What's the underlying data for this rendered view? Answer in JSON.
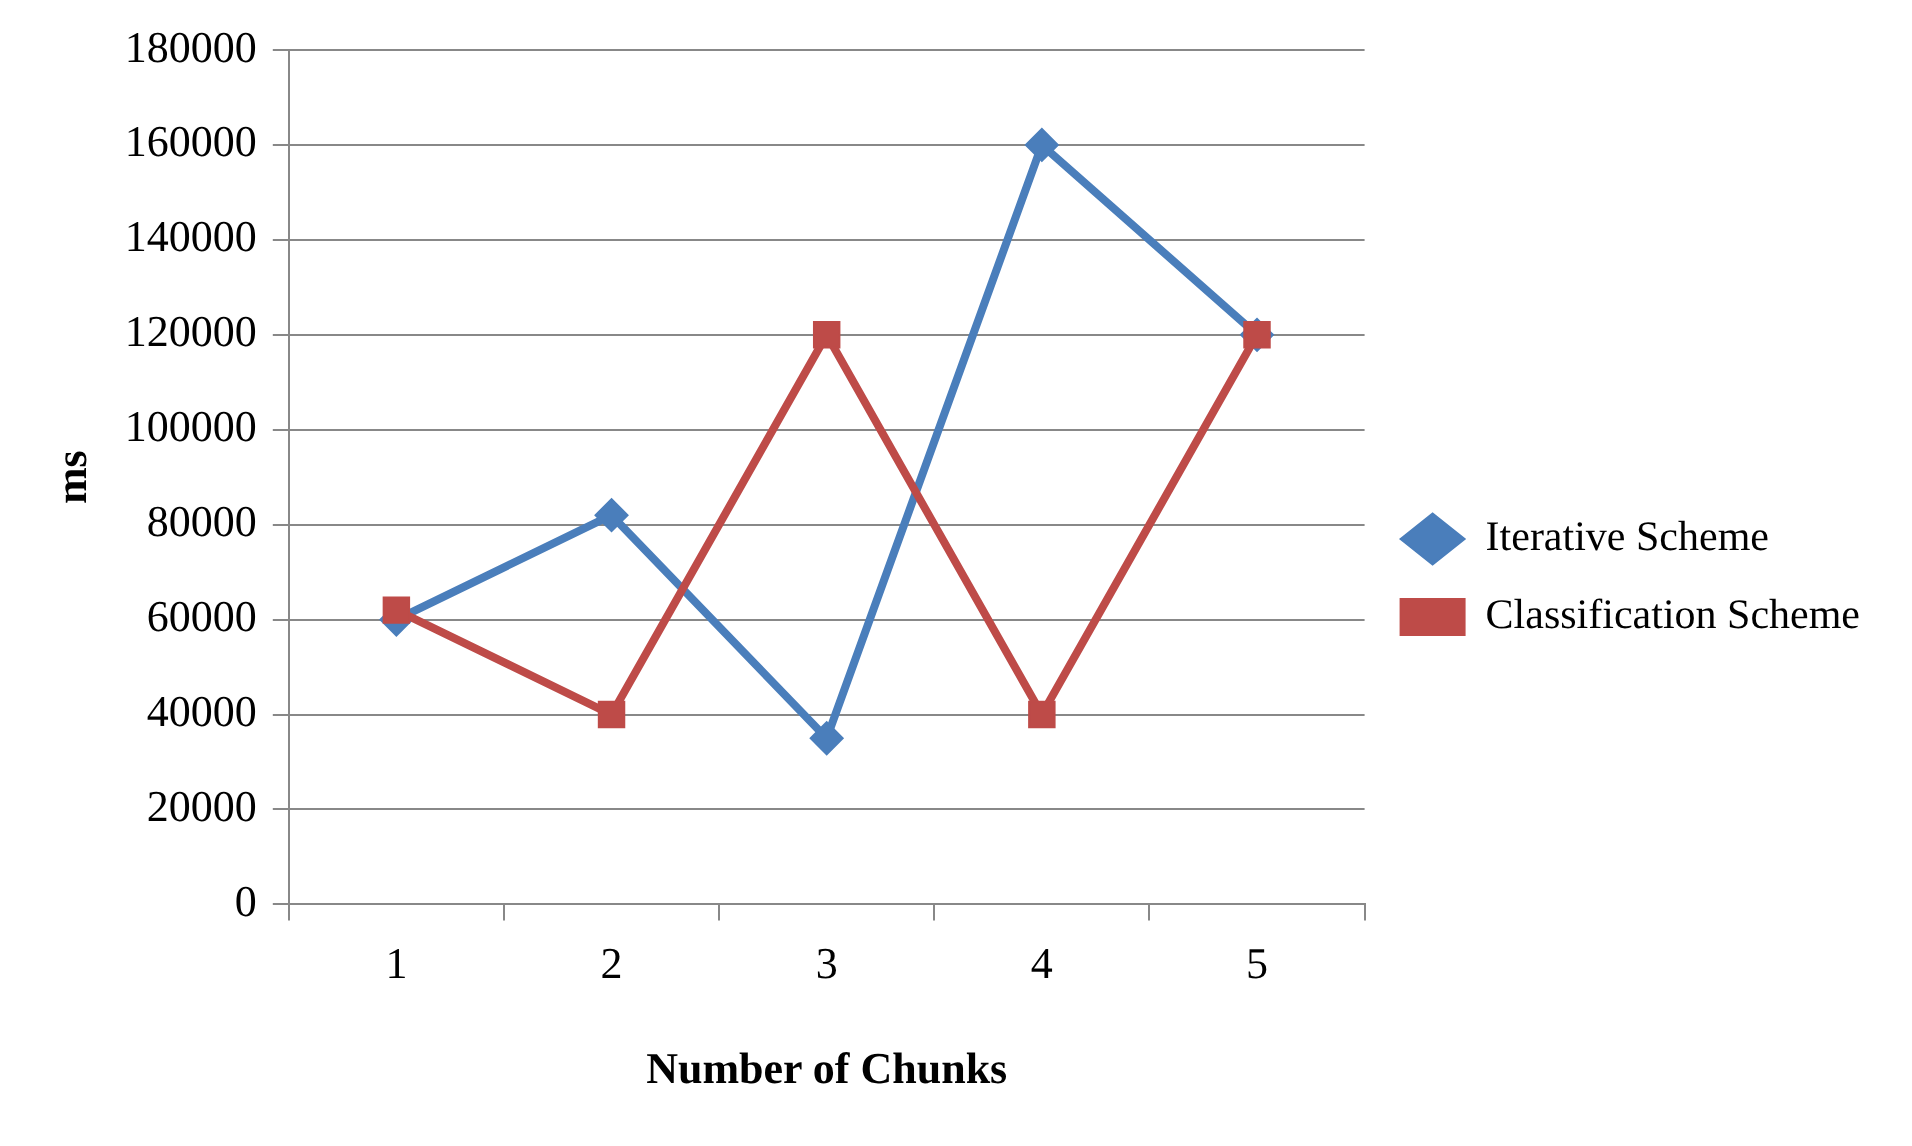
{
  "chart_data": {
    "type": "line",
    "xlabel": "Number of Chunks",
    "ylabel": "ms",
    "categories": [
      "1",
      "2",
      "3",
      "4",
      "5"
    ],
    "series": [
      {
        "name": "Iterative Scheme",
        "color": "#4a7ebb",
        "values": [
          60000,
          82000,
          35000,
          160000,
          120000
        ],
        "marker": "diamond"
      },
      {
        "name": "Classification Scheme",
        "color": "#be4b48",
        "values": [
          62000,
          40000,
          120000,
          40000,
          120000
        ],
        "marker": "square"
      }
    ],
    "ylim": [
      0,
      180000
    ],
    "yticks": [
      0,
      20000,
      40000,
      60000,
      80000,
      100000,
      120000,
      140000,
      160000,
      180000
    ],
    "grid": "y",
    "legend": "right"
  }
}
